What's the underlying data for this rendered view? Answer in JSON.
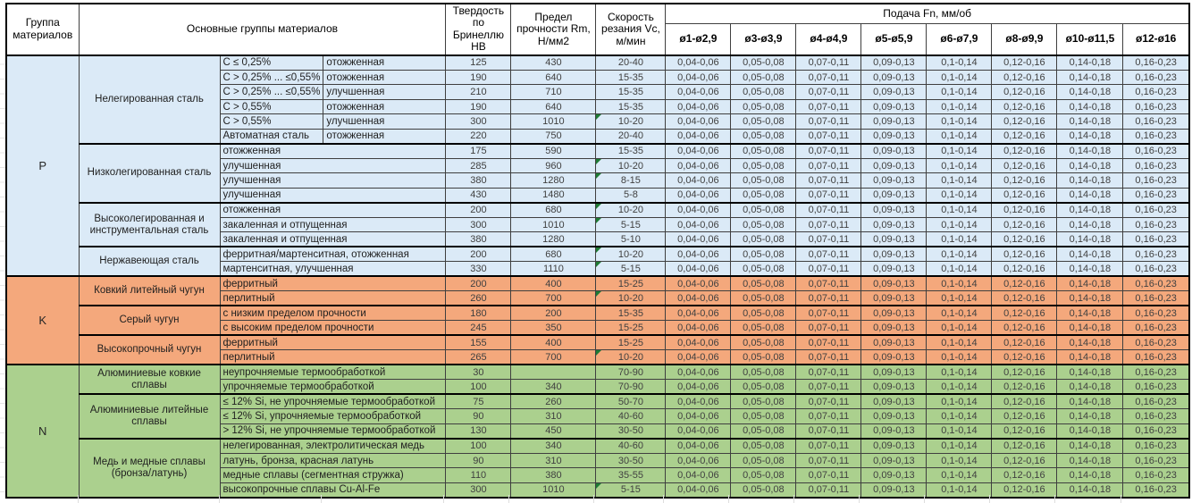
{
  "header": {
    "col_group": "Группа материалов",
    "col_main": "Основные группы материалов",
    "col_hb": "Твердость по Бринеллю HB",
    "col_rm": "Предел прочности Rm, Н/мм2",
    "col_vc": "Скорость резания Vc, м/мин",
    "feed_title": "Подача Fn, мм/об",
    "feed_cols": [
      "ø1-ø2,9",
      "ø3-ø3,9",
      "ø4-ø4,9",
      "ø5-ø5,9",
      "ø6-ø7,9",
      "ø8-ø9,9",
      "ø10-ø11,5",
      "ø12-ø16"
    ]
  },
  "feed_values": [
    "0,04-0,06",
    "0,05-0,08",
    "0,07-0,11",
    "0,09-0,13",
    "0,1-0,14",
    "0,12-0,16",
    "0,14-0,18",
    "0,16-0,23"
  ],
  "colors": {
    "group_p_blue": "#DBEAF7",
    "group_k_orange": "#F4A87C",
    "group_n_green": "#ABD08E",
    "flag_green": "#1E7B34",
    "border_dark": "#3F3F3F",
    "text_numbers": "#404040"
  },
  "groups": [
    {
      "letter": "P",
      "key": "p",
      "subgroups": [
        {
          "name": "Нелегированная сталь",
          "rows": [
            {
              "c1": "C ≤ 0,25%",
              "c2": "отожженная",
              "hb": "125",
              "rm": "430",
              "vc": "20-40",
              "flag": false
            },
            {
              "c1": "C > 0,25% ... ≤0,55%",
              "c2": "отожженная",
              "hb": "190",
              "rm": "640",
              "vc": "15-35",
              "flag": false
            },
            {
              "c1": "C > 0,25% ... ≤0,55%",
              "c2": "улучшенная",
              "hb": "210",
              "rm": "710",
              "vc": "15-35",
              "flag": false
            },
            {
              "c1": "C > 0,55%",
              "c2": "отожженная",
              "hb": "190",
              "rm": "640",
              "vc": "15-35",
              "flag": false
            },
            {
              "c1": "C > 0,55%",
              "c2": "улучшенная",
              "hb": "300",
              "rm": "1010",
              "vc": "10-20",
              "flag": true
            },
            {
              "c1": "Автоматная сталь",
              "c2": "отожженная",
              "hb": "220",
              "rm": "750",
              "vc": "20-40",
              "flag": false
            }
          ]
        },
        {
          "name": "Низколегированная сталь",
          "rows": [
            {
              "cond": "отожженная",
              "hb": "175",
              "rm": "590",
              "vc": "15-35",
              "flag": false
            },
            {
              "cond": "улучшенная",
              "hb": "285",
              "rm": "960",
              "vc": "10-20",
              "flag": true
            },
            {
              "cond": "улучшенная",
              "hb": "380",
              "rm": "1280",
              "vc": "8-15",
              "flag": true
            },
            {
              "cond": "улучшенная",
              "hb": "430",
              "rm": "1480",
              "vc": "5-8",
              "flag": false
            }
          ]
        },
        {
          "name": "Высоколегированная и инструментальная сталь",
          "rows": [
            {
              "cond": "отожженная",
              "hb": "200",
              "rm": "680",
              "vc": "10-20",
              "flag": true
            },
            {
              "cond": "закаленная и отпущенная",
              "hb": "300",
              "rm": "1010",
              "vc": "5-15",
              "flag": true
            },
            {
              "cond": "закаленная и отпущенная",
              "hb": "380",
              "rm": "1280",
              "vc": "5-10",
              "flag": false
            }
          ]
        },
        {
          "name": "Нержавеющая сталь",
          "rows": [
            {
              "cond": "ферритная/мартенситная, отожженная",
              "hb": "200",
              "rm": "680",
              "vc": "10-20",
              "flag": true
            },
            {
              "cond": "мартенситная, улучшенная",
              "hb": "330",
              "rm": "1110",
              "vc": "5-15",
              "flag": true
            }
          ]
        }
      ]
    },
    {
      "letter": "K",
      "key": "k",
      "subgroups": [
        {
          "name": "Ковкий литейный чугун",
          "rows": [
            {
              "cond": "ферритный",
              "hb": "200",
              "rm": "400",
              "vc": "15-25",
              "flag": false
            },
            {
              "cond": "перлитный",
              "hb": "260",
              "rm": "700",
              "vc": "10-20",
              "flag": true
            }
          ]
        },
        {
          "name": "Серый чугун",
          "rows": [
            {
              "cond": "с низким пределом прочности",
              "hb": "180",
              "rm": "200",
              "vc": "15-35",
              "flag": false
            },
            {
              "cond": "с высоким пределом прочности",
              "hb": "245",
              "rm": "350",
              "vc": "15-25",
              "flag": false
            }
          ]
        },
        {
          "name": "Высокопрочный чугун",
          "rows": [
            {
              "cond": "ферритный",
              "hb": "155",
              "rm": "400",
              "vc": "15-25",
              "flag": false
            },
            {
              "cond": "перлитный",
              "hb": "265",
              "rm": "700",
              "vc": "10-20",
              "flag": true
            }
          ]
        }
      ]
    },
    {
      "letter": "N",
      "key": "n",
      "subgroups": [
        {
          "name": "Алюминиевые ковкие сплавы",
          "rows": [
            {
              "cond": "неупрочняемые термообработкой",
              "hb": "30",
              "rm": "",
              "vc": "70-90",
              "flag": false
            },
            {
              "cond": "упрочняемые термообработкой",
              "hb": "100",
              "rm": "340",
              "vc": "70-90",
              "flag": false
            }
          ]
        },
        {
          "name": "Алюминиевые литейные сплавы",
          "rows": [
            {
              "cond": "≤ 12% Si, не упрочняемые термообработкой",
              "hb": "75",
              "rm": "260",
              "vc": "50-70",
              "flag": false
            },
            {
              "cond": "≤ 12% Si, упрочняемые термообработкой",
              "hb": "90",
              "rm": "310",
              "vc": "40-60",
              "flag": false
            },
            {
              "cond": "> 12% Si, не упрочняемые термообработкой",
              "hb": "130",
              "rm": "450",
              "vc": "30-50",
              "flag": false
            }
          ]
        },
        {
          "name": "Медь и медные сплавы (бронза/латунь)",
          "rows": [
            {
              "cond": "нелегированная, электролитическая медь",
              "hb": "100",
              "rm": "340",
              "vc": "40-60",
              "flag": false
            },
            {
              "cond": "латунь, бронза, красная латунь",
              "hb": "90",
              "rm": "310",
              "vc": "30-50",
              "flag": false
            },
            {
              "cond": "медные сплавы (сегментная стружка)",
              "hb": "110",
              "rm": "380",
              "vc": "35-55",
              "flag": false
            },
            {
              "cond": "высокопрочные сплавы Cu-Al-Fe",
              "hb": "300",
              "rm": "1010",
              "vc": "5-15",
              "flag": true
            }
          ]
        }
      ]
    }
  ]
}
